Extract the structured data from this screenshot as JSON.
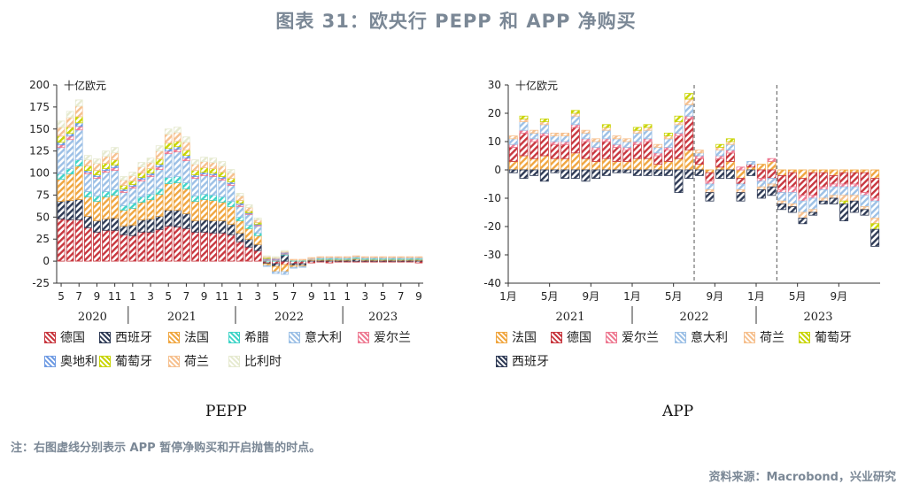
{
  "page": {
    "title": "图表 31：欧央行 PEPP 和 APP 净购买",
    "note": "注：右图虚线分别表示 APP 暂停净购买和开启抛售的时点。",
    "source": "资料来源：Macrobond，兴业研究"
  },
  "colors": {
    "德国": "#c8373f",
    "西班牙": "#2f3b56",
    "法国": "#f0a640",
    "希腊": "#3fd4c8",
    "意大利": "#9cc0e6",
    "爱尔兰": "#ee7a92",
    "奥地利": "#6f9be3",
    "葡萄牙": "#c8d400",
    "荷兰": "#f6c08e",
    "比利时": "#e6ead0"
  },
  "chart_data": [
    {
      "type": "bar",
      "stacked": true,
      "name": "PEPP",
      "unit": "十亿欧元",
      "ylim": [
        -25,
        200
      ],
      "yticks": [
        -25,
        0,
        25,
        50,
        75,
        100,
        125,
        150,
        175,
        200
      ],
      "x": [
        "2020-05",
        "2020-06",
        "2020-07",
        "2020-08",
        "2020-09",
        "2020-10",
        "2020-11",
        "2020-12",
        "2021-01",
        "2021-02",
        "2021-03",
        "2021-04",
        "2021-05",
        "2021-06",
        "2021-07",
        "2021-08",
        "2021-09",
        "2021-10",
        "2021-11",
        "2021-12",
        "2022-01",
        "2022-02",
        "2022-03",
        "2022-04",
        "2022-05",
        "2022-06",
        "2022-07",
        "2022-08",
        "2022-09",
        "2022-10",
        "2022-11",
        "2022-12",
        "2023-01",
        "2023-02",
        "2023-03",
        "2023-04",
        "2023-05",
        "2023-06",
        "2023-07",
        "2023-08",
        "2023-09"
      ],
      "xtick_labels": [
        "5",
        "7",
        "9",
        "11",
        "1",
        "3",
        "5",
        "7",
        "9",
        "11",
        "1",
        "3",
        "5",
        "7",
        "9",
        "11",
        "1",
        "3",
        "5",
        "7",
        "9"
      ],
      "year_labels": [
        "2020",
        "2021",
        "2022",
        "2023"
      ],
      "legend": [
        "德国",
        "西班牙",
        "法国",
        "希腊",
        "意大利",
        "爱尔兰",
        "奥地利",
        "葡萄牙",
        "荷兰",
        "比利时"
      ],
      "series": [
        {
          "name": "德国",
          "values": [
            48,
            47,
            47,
            38,
            33,
            35,
            35,
            30,
            29,
            33,
            33,
            36,
            40,
            39,
            37,
            33,
            33,
            32,
            32,
            30,
            22,
            16,
            12,
            -2,
            -3,
            -4,
            -3,
            -3,
            -2,
            -1,
            -2,
            -1,
            -1,
            -1,
            -1,
            -1,
            -1,
            -1,
            -1,
            -1,
            -2
          ]
        },
        {
          "name": "西班牙",
          "values": [
            20,
            22,
            23,
            13,
            13,
            13,
            14,
            10,
            12,
            14,
            15,
            15,
            18,
            19,
            17,
            13,
            14,
            14,
            14,
            12,
            10,
            9,
            7,
            -1,
            -3,
            7,
            -2,
            -2,
            1,
            1,
            1,
            1,
            1,
            2,
            1,
            1,
            1,
            1,
            1,
            1,
            1
          ]
        },
        {
          "name": "法国",
          "values": [
            25,
            30,
            38,
            22,
            22,
            25,
            26,
            18,
            19,
            20,
            22,
            25,
            30,
            31,
            28,
            22,
            23,
            23,
            21,
            20,
            14,
            12,
            10,
            -2,
            -6,
            -8,
            -2,
            -1,
            1,
            1,
            1,
            1,
            1,
            1,
            1,
            1,
            1,
            1,
            1,
            1,
            1
          ]
        },
        {
          "name": "希腊",
          "values": [
            6,
            6,
            7,
            6,
            6,
            6,
            6,
            5,
            6,
            6,
            6,
            6,
            7,
            7,
            7,
            6,
            6,
            6,
            6,
            6,
            4,
            4,
            3,
            1,
            1,
            1,
            1,
            1,
            0,
            1,
            1,
            1,
            1,
            1,
            1,
            1,
            1,
            1,
            1,
            1,
            1
          ]
        },
        {
          "name": "意大利",
          "values": [
            30,
            33,
            34,
            20,
            20,
            22,
            22,
            15,
            17,
            18,
            20,
            22,
            27,
            28,
            25,
            20,
            21,
            21,
            19,
            18,
            12,
            12,
            8,
            -1,
            -2,
            -3,
            -1,
            -1,
            1,
            1,
            1,
            1,
            1,
            1,
            1,
            1,
            1,
            1,
            1,
            1,
            1
          ]
        },
        {
          "name": "爱尔兰",
          "values": [
            3,
            4,
            4,
            2,
            2,
            2,
            3,
            2,
            2,
            2,
            2,
            3,
            3,
            3,
            3,
            2,
            2,
            2,
            2,
            2,
            2,
            1,
            1,
            1,
            1,
            1,
            0,
            0,
            0,
            0,
            0,
            0,
            0,
            0,
            0,
            0,
            0,
            0,
            0,
            0,
            0
          ]
        },
        {
          "name": "奥地利",
          "values": [
            3,
            3,
            4,
            2,
            2,
            2,
            3,
            2,
            2,
            2,
            2,
            3,
            3,
            3,
            3,
            2,
            2,
            2,
            2,
            2,
            2,
            1,
            1,
            1,
            1,
            1,
            0,
            0,
            0,
            0,
            0,
            0,
            0,
            0,
            0,
            0,
            0,
            0,
            0,
            0,
            0
          ]
        },
        {
          "name": "葡萄牙",
          "values": [
            7,
            7,
            7,
            5,
            5,
            6,
            6,
            4,
            4,
            5,
            5,
            6,
            6,
            6,
            6,
            5,
            5,
            5,
            5,
            4,
            3,
            2,
            2,
            1,
            0,
            0,
            0,
            0,
            0,
            0,
            0,
            0,
            0,
            0,
            0,
            0,
            0,
            0,
            0,
            0,
            0
          ]
        },
        {
          "name": "荷兰",
          "values": [
            10,
            11,
            12,
            7,
            8,
            8,
            8,
            6,
            6,
            7,
            7,
            9,
            10,
            10,
            9,
            7,
            7,
            7,
            7,
            6,
            5,
            4,
            3,
            1,
            1,
            1,
            1,
            1,
            1,
            1,
            1,
            1,
            1,
            1,
            1,
            1,
            1,
            1,
            1,
            1,
            1
          ]
        },
        {
          "name": "比利时",
          "values": [
            7,
            7,
            7,
            5,
            5,
            6,
            6,
            4,
            4,
            5,
            5,
            6,
            6,
            6,
            6,
            5,
            5,
            5,
            5,
            4,
            3,
            3,
            2,
            1,
            1,
            1,
            0,
            0,
            0,
            0,
            0,
            0,
            0,
            0,
            0,
            0,
            0,
            0,
            0,
            0,
            0
          ]
        }
      ]
    },
    {
      "type": "bar",
      "stacked": true,
      "name": "APP",
      "unit": "十亿欧元",
      "ylim": [
        -40,
        30
      ],
      "yticks": [
        -40,
        -30,
        -20,
        -10,
        0,
        10,
        20,
        30
      ],
      "x": [
        "2021-01",
        "2021-02",
        "2021-03",
        "2021-04",
        "2021-05",
        "2021-06",
        "2021-07",
        "2021-08",
        "2021-09",
        "2021-10",
        "2021-11",
        "2021-12",
        "2022-01",
        "2022-02",
        "2022-03",
        "2022-04",
        "2022-05",
        "2022-06",
        "2022-07",
        "2022-08",
        "2022-09",
        "2022-10",
        "2022-11",
        "2022-12",
        "2023-01",
        "2023-02",
        "2023-03",
        "2023-04",
        "2023-05",
        "2023-06",
        "2023-07",
        "2023-08",
        "2023-09",
        "2023-10",
        "2023-11",
        "2023-12"
      ],
      "xtick_labels": [
        "1月",
        "5月",
        "9月",
        "1月",
        "5月",
        "9月",
        "1月",
        "5月",
        "9月"
      ],
      "year_labels": [
        "2021",
        "2022",
        "2023"
      ],
      "dashed_lines_at": [
        "2022-07",
        "2023-03"
      ],
      "legend": [
        "法国",
        "德国",
        "爱尔兰",
        "意大利",
        "荷兰",
        "葡萄牙",
        "西班牙"
      ],
      "series": [
        {
          "name": "法国",
          "values": [
            3,
            5,
            4,
            5,
            4,
            4,
            6,
            4,
            3,
            4,
            3,
            3,
            4,
            4,
            2,
            3,
            4,
            7,
            2,
            -1,
            1,
            3,
            -3,
            1,
            2,
            3,
            -2,
            -1,
            -3,
            -1,
            -1,
            -2,
            -1,
            -1,
            -1,
            -3
          ]
        },
        {
          "name": "德国",
          "values": [
            5,
            8,
            6,
            7,
            5,
            5,
            9,
            6,
            4,
            6,
            5,
            4,
            5,
            6,
            3,
            4,
            8,
            11,
            2,
            -3,
            3,
            3,
            -2,
            1,
            -3,
            -3,
            -5,
            -5,
            -6,
            -8,
            -5,
            -3,
            -4,
            -4,
            -7,
            -7
          ]
        },
        {
          "name": "爱尔兰",
          "values": [
            1,
            1,
            1,
            1,
            1,
            1,
            1,
            1,
            1,
            1,
            1,
            1,
            1,
            1,
            1,
            1,
            1,
            1,
            1,
            -1,
            1,
            1,
            1,
            0,
            -1,
            1,
            -1,
            -2,
            -2,
            -1,
            -1,
            -1,
            -1,
            -1,
            -1,
            -1
          ]
        },
        {
          "name": "意大利",
          "values": [
            2,
            3,
            2,
            3,
            2,
            2,
            3,
            2,
            2,
            3,
            2,
            2,
            3,
            3,
            2,
            3,
            3,
            4,
            1,
            -2,
            2,
            2,
            -2,
            1,
            -2,
            -2,
            -3,
            -4,
            -4,
            -4,
            -3,
            -3,
            -3,
            -3,
            -4,
            -6
          ]
        },
        {
          "name": "荷兰",
          "values": [
            1,
            1,
            1,
            1,
            1,
            1,
            1,
            1,
            1,
            1,
            1,
            1,
            1,
            1,
            1,
            1,
            1,
            2,
            1,
            -1,
            1,
            1,
            -1,
            0,
            -1,
            -1,
            -1,
            -1,
            -2,
            -1,
            -1,
            -1,
            -2,
            -2,
            -1,
            -2
          ]
        },
        {
          "name": "葡萄牙",
          "values": [
            0,
            1,
            0,
            1,
            0,
            0,
            1,
            0,
            0,
            1,
            0,
            0,
            1,
            1,
            0,
            1,
            2,
            2,
            0,
            0,
            1,
            1,
            0,
            0,
            0,
            0,
            0,
            0,
            0,
            0,
            0,
            0,
            -1,
            0,
            0,
            -2
          ]
        },
        {
          "name": "西班牙",
          "values": [
            -1,
            -3,
            -2,
            -4,
            -1,
            -3,
            -3,
            -4,
            -3,
            -2,
            -1,
            -1,
            -2,
            -2,
            -2,
            -2,
            -8,
            -3,
            -2,
            -3,
            -3,
            -3,
            -3,
            -2,
            -3,
            -3,
            -2,
            -2,
            -2,
            -1,
            -1,
            -2,
            -6,
            -4,
            -2,
            -6
          ]
        }
      ]
    }
  ]
}
